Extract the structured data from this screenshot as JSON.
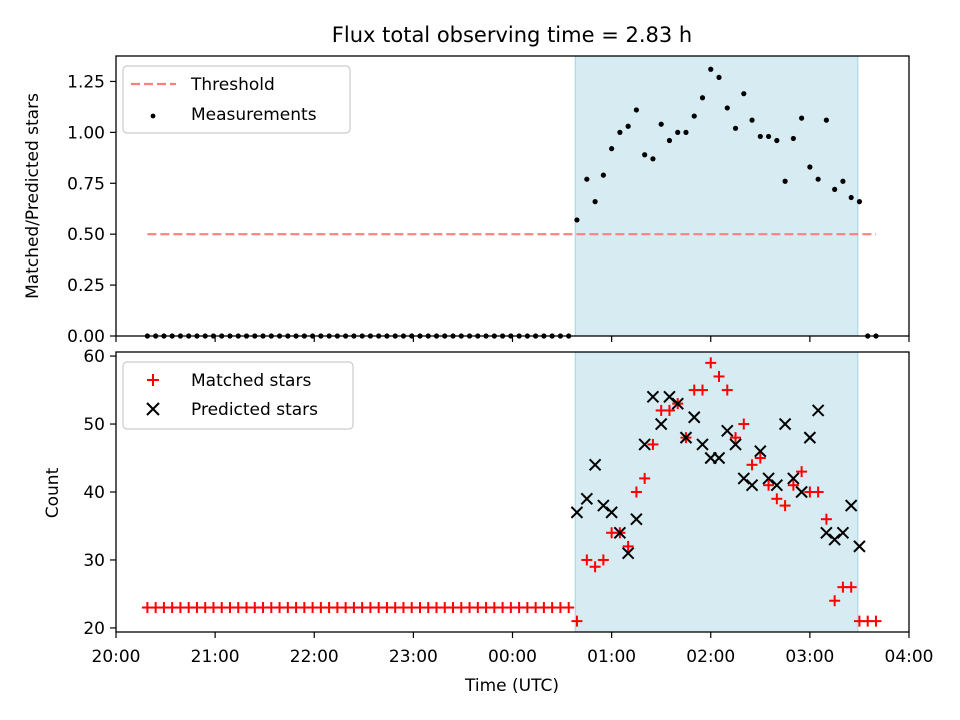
{
  "chart_data": [
    {
      "type": "scatter",
      "title": "Flux total observing time = 2.83 h",
      "xlabel": "",
      "ylabel": "Matched/Predicted stars",
      "xlim": [
        "20:00",
        "04:00"
      ],
      "ylim": [
        0,
        1.375
      ],
      "x_ticks": [
        "20:00",
        "21:00",
        "22:00",
        "23:00",
        "00:00",
        "01:00",
        "02:00",
        "03:00",
        "04:00"
      ],
      "y_ticks": [
        "0.00",
        "0.25",
        "0.50",
        "0.75",
        "1.00",
        "1.25"
      ],
      "shaded_region": {
        "x_start": "00:38",
        "x_end": "03:29"
      },
      "legend_position": "upper left",
      "series": [
        {
          "name": "Threshold",
          "type": "line",
          "style": "dashed",
          "color": "#ff7f7f",
          "x": [
            "20:19",
            "03:40"
          ],
          "y": [
            0.5,
            0.5
          ]
        },
        {
          "name": "Measurements",
          "type": "scatter",
          "color": "#000000",
          "x": [
            "20:19",
            "20:24",
            "20:29",
            "20:34",
            "20:39",
            "20:44",
            "20:49",
            "20:54",
            "20:59",
            "21:04",
            "21:09",
            "21:14",
            "21:19",
            "21:24",
            "21:29",
            "21:34",
            "21:39",
            "21:44",
            "21:49",
            "21:54",
            "21:59",
            "22:04",
            "22:09",
            "22:14",
            "22:19",
            "22:24",
            "22:29",
            "22:34",
            "22:39",
            "22:44",
            "22:49",
            "22:54",
            "22:59",
            "23:04",
            "23:09",
            "23:14",
            "23:19",
            "23:24",
            "23:29",
            "23:34",
            "23:39",
            "23:44",
            "23:49",
            "23:54",
            "23:59",
            "00:04",
            "00:09",
            "00:14",
            "00:19",
            "00:24",
            "00:29",
            "00:34",
            "00:39",
            "00:45",
            "00:50",
            "00:55",
            "01:00",
            "01:05",
            "01:10",
            "01:15",
            "01:20",
            "01:25",
            "01:30",
            "01:35",
            "01:40",
            "01:45",
            "01:50",
            "01:55",
            "02:00",
            "02:05",
            "02:10",
            "02:15",
            "02:20",
            "02:25",
            "02:30",
            "02:35",
            "02:40",
            "02:45",
            "02:50",
            "02:55",
            "03:00",
            "03:05",
            "03:10",
            "03:15",
            "03:20",
            "03:25",
            "03:30",
            "03:35",
            "03:40"
          ],
          "y": [
            0,
            0,
            0,
            0,
            0,
            0,
            0,
            0,
            0,
            0,
            0,
            0,
            0,
            0,
            0,
            0,
            0,
            0,
            0,
            0,
            0,
            0,
            0,
            0,
            0,
            0,
            0,
            0,
            0,
            0,
            0,
            0,
            0,
            0,
            0,
            0,
            0,
            0,
            0,
            0,
            0,
            0,
            0,
            0,
            0,
            0,
            0,
            0,
            0,
            0,
            0,
            0,
            0.57,
            0.77,
            0.66,
            0.79,
            0.92,
            1.0,
            1.03,
            1.11,
            0.89,
            0.87,
            1.04,
            0.96,
            1.0,
            1.0,
            1.08,
            1.17,
            1.31,
            1.27,
            1.12,
            1.02,
            1.19,
            1.06,
            0.98,
            0.98,
            0.96,
            0.76,
            0.97,
            1.07,
            0.83,
            0.77,
            1.06,
            0.72,
            0.76,
            0.68,
            0.66,
            0,
            0
          ]
        }
      ]
    },
    {
      "type": "scatter",
      "title": "",
      "xlabel": "Time (UTC)",
      "ylabel": "Count",
      "xlim": [
        "20:00",
        "04:00"
      ],
      "ylim": [
        19.4,
        60.6
      ],
      "x_ticks": [
        "20:00",
        "21:00",
        "22:00",
        "23:00",
        "00:00",
        "01:00",
        "02:00",
        "03:00",
        "04:00"
      ],
      "y_ticks": [
        "20",
        "30",
        "40",
        "50",
        "60"
      ],
      "shaded_region": {
        "x_start": "00:38",
        "x_end": "03:29"
      },
      "legend_position": "upper left",
      "series": [
        {
          "name": "Matched stars",
          "type": "scatter",
          "marker": "+",
          "color": "#ff0000",
          "x": [
            "20:19",
            "20:24",
            "20:29",
            "20:34",
            "20:39",
            "20:44",
            "20:49",
            "20:54",
            "20:59",
            "21:04",
            "21:09",
            "21:14",
            "21:19",
            "21:24",
            "21:29",
            "21:34",
            "21:39",
            "21:44",
            "21:49",
            "21:54",
            "21:59",
            "22:04",
            "22:09",
            "22:14",
            "22:19",
            "22:24",
            "22:29",
            "22:34",
            "22:39",
            "22:44",
            "22:49",
            "22:54",
            "22:59",
            "23:04",
            "23:09",
            "23:14",
            "23:19",
            "23:24",
            "23:29",
            "23:34",
            "23:39",
            "23:44",
            "23:49",
            "23:54",
            "23:59",
            "00:04",
            "00:09",
            "00:14",
            "00:19",
            "00:24",
            "00:29",
            "00:34",
            "00:39",
            "00:45",
            "00:50",
            "00:55",
            "01:00",
            "01:05",
            "01:10",
            "01:15",
            "01:20",
            "01:25",
            "01:30",
            "01:35",
            "01:40",
            "01:45",
            "01:50",
            "01:55",
            "02:00",
            "02:05",
            "02:10",
            "02:15",
            "02:20",
            "02:25",
            "02:30",
            "02:35",
            "02:40",
            "02:45",
            "02:50",
            "02:55",
            "03:00",
            "03:05",
            "03:10",
            "03:15",
            "03:20",
            "03:25",
            "03:30",
            "03:35",
            "03:40"
          ],
          "y": [
            23,
            23,
            23,
            23,
            23,
            23,
            23,
            23,
            23,
            23,
            23,
            23,
            23,
            23,
            23,
            23,
            23,
            23,
            23,
            23,
            23,
            23,
            23,
            23,
            23,
            23,
            23,
            23,
            23,
            23,
            23,
            23,
            23,
            23,
            23,
            23,
            23,
            23,
            23,
            23,
            23,
            23,
            23,
            23,
            23,
            23,
            23,
            23,
            23,
            23,
            23,
            23,
            21,
            30,
            29,
            30,
            34,
            34,
            32,
            40,
            42,
            47,
            52,
            52,
            53,
            48,
            55,
            55,
            59,
            57,
            55,
            48,
            50,
            44,
            45,
            41,
            39,
            38,
            41,
            43,
            40,
            40,
            36,
            24,
            26,
            26,
            21,
            21,
            21
          ]
        },
        {
          "name": "Predicted stars",
          "type": "scatter",
          "marker": "x",
          "color": "#000000",
          "x": [
            "00:39",
            "00:45",
            "00:50",
            "00:55",
            "01:00",
            "01:05",
            "01:10",
            "01:15",
            "01:20",
            "01:25",
            "01:30",
            "01:35",
            "01:40",
            "01:45",
            "01:50",
            "01:55",
            "02:00",
            "02:05",
            "02:10",
            "02:15",
            "02:20",
            "02:25",
            "02:30",
            "02:35",
            "02:40",
            "02:45",
            "02:50",
            "02:55",
            "03:00",
            "03:05",
            "03:10",
            "03:15",
            "03:20",
            "03:25",
            "03:30"
          ],
          "y": [
            37,
            39,
            44,
            38,
            37,
            34,
            31,
            36,
            47,
            54,
            50,
            54,
            53,
            48,
            51,
            47,
            45,
            45,
            49,
            47,
            42,
            41,
            46,
            42,
            41,
            50,
            42,
            40,
            48,
            52,
            34,
            33,
            34,
            38,
            32
          ]
        }
      ]
    }
  ]
}
